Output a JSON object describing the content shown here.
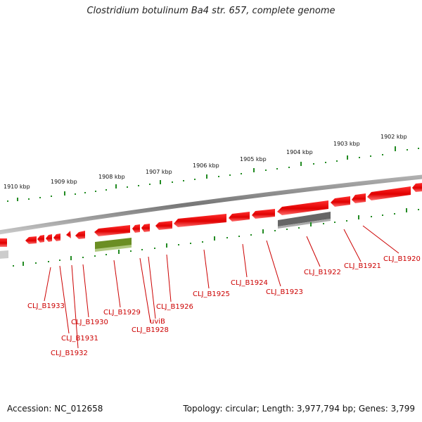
{
  "title": "Clostridium botulinum Ba4 str. 657, complete genome",
  "footer": {
    "accession": "Accession: NC_012658",
    "summary": "Topology: circular; Length: 3,977,794 bp; Genes: 3,799"
  },
  "scale": {
    "labels": [
      "1910 kbp",
      "1909 kbp",
      "1908 kbp",
      "1907 kbp",
      "1906 kbp",
      "1905 kbp",
      "1904 kbp",
      "1903 kbp",
      "1902 kbp"
    ]
  },
  "genes": {
    "labels": [
      "CLJ_B1933",
      "CLJ_B1931",
      "CLJ_B1932",
      "CLJ_B1930",
      "CLJ_B1929",
      "uviB",
      "CLJ_B1928",
      "CLJ_B1926",
      "CLJ_B1925",
      "CLJ_B1924",
      "CLJ_B1923",
      "CLJ_B1922",
      "CLJ_B1921",
      "CLJ_B1920"
    ]
  },
  "colors": {
    "gene_feature": "#ff0000",
    "pseudo_feature": "#666666",
    "rna_feature": "#6b8e23",
    "backbone": "#888888",
    "tick": "#228b22",
    "label": "#cc0000"
  }
}
